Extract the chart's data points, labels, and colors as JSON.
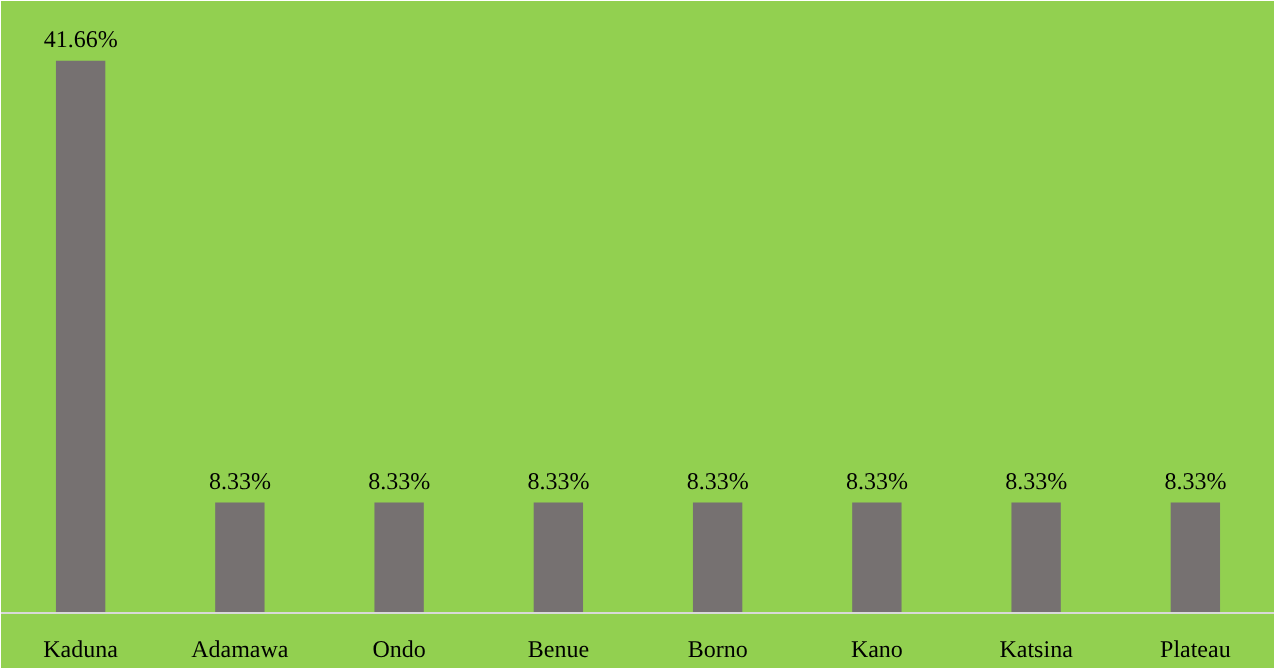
{
  "chart_data": {
    "type": "bar",
    "categories": [
      "Kaduna",
      "Adamawa",
      "Ondo",
      "Benue",
      "Borno",
      "Kano",
      "Katsina",
      "Plateau"
    ],
    "values": [
      41.66,
      8.33,
      8.33,
      8.33,
      8.33,
      8.33,
      8.33,
      8.33
    ],
    "value_labels": [
      "41.66%",
      "8.33%",
      "8.33%",
      "8.33%",
      "8.33%",
      "8.33%",
      "8.33%",
      "8.33%"
    ],
    "color": "#767171"
  }
}
